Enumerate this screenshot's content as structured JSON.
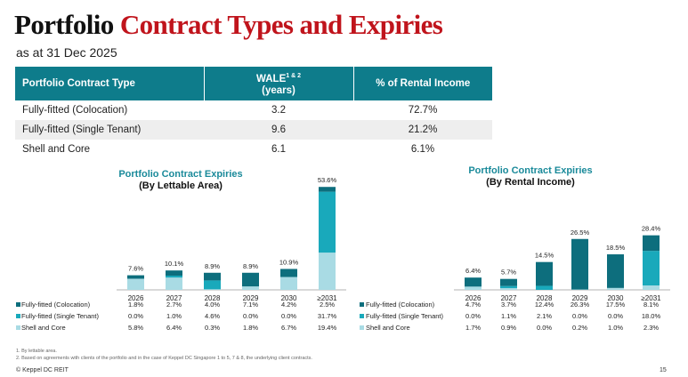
{
  "header": {
    "title_part1": "Portfolio",
    "title_part2": "Contract Types and Expiries",
    "subtitle": "as at 31 Dec 2025"
  },
  "contract_table": {
    "col1": "Portfolio Contract Type",
    "col2_line1": "WALE",
    "col2_sup": "1 & 2",
    "col2_line2": "(years)",
    "col3": "% of Rental Income",
    "rows": [
      {
        "type": "Fully-fitted (Colocation)",
        "wale": "3.2",
        "pct": "72.7%"
      },
      {
        "type": "Fully-fitted (Single Tenant)",
        "wale": "9.6",
        "pct": "21.2%"
      },
      {
        "type": "Shell and Core",
        "wale": "6.1",
        "pct": "6.1%"
      }
    ]
  },
  "colors": {
    "colocation": "#0d6e7d",
    "single_tenant": "#19a9bb",
    "shell_core": "#a9dbe4",
    "header_bg": "#0e7c8b",
    "accent_red": "#c0141c"
  },
  "chart_data": [
    {
      "type": "bar",
      "stacked": true,
      "title_line1": "Portfolio Contract Expiries",
      "title_line2": "(By Lettable Area)",
      "categories": [
        "2026",
        "2027",
        "2028",
        "2029",
        "2030",
        "≥2031"
      ],
      "totals": [
        "7.6%",
        "10.1%",
        "8.9%",
        "8.9%",
        "10.9%",
        "53.6%"
      ],
      "series": [
        {
          "name": "Fully-fitted (Colocation)",
          "values": [
            1.8,
            2.7,
            4.0,
            7.1,
            4.2,
            2.5
          ],
          "labels": [
            "1.8%",
            "2.7%",
            "4.0%",
            "7.1%",
            "4.2%",
            "2.5%"
          ]
        },
        {
          "name": "Fully-fitted (Single Tenant)",
          "values": [
            0.0,
            1.0,
            4.6,
            0.0,
            0.0,
            31.7
          ],
          "labels": [
            "0.0%",
            "1.0%",
            "4.6%",
            "0.0%",
            "0.0%",
            "31.7%"
          ]
        },
        {
          "name": "Shell and Core",
          "values": [
            5.8,
            6.4,
            0.3,
            1.8,
            6.7,
            19.4
          ],
          "labels": [
            "5.8%",
            "6.4%",
            "0.3%",
            "1.8%",
            "6.7%",
            "19.4%"
          ]
        }
      ]
    },
    {
      "type": "bar",
      "stacked": true,
      "title_line1": "Portfolio Contract Expiries",
      "title_line2": "(By Rental Income)",
      "categories": [
        "2026",
        "2027",
        "2028",
        "2029",
        "2030",
        "≥2031"
      ],
      "totals": [
        "6.4%",
        "5.7%",
        "14.5%",
        "26.5%",
        "18.5%",
        "28.4%"
      ],
      "series": [
        {
          "name": "Fully-fitted (Colocation)",
          "values": [
            4.7,
            3.7,
            12.4,
            26.3,
            17.5,
            8.1
          ],
          "labels": [
            "4.7%",
            "3.7%",
            "12.4%",
            "26.3%",
            "17.5%",
            "8.1%"
          ]
        },
        {
          "name": "Fully-fitted (Single Tenant)",
          "values": [
            0.0,
            1.1,
            2.1,
            0.0,
            0.0,
            18.0
          ],
          "labels": [
            "0.0%",
            "1.1%",
            "2.1%",
            "0.0%",
            "0.0%",
            "18.0%"
          ]
        },
        {
          "name": "Shell and Core",
          "values": [
            1.7,
            0.9,
            0.0,
            0.2,
            1.0,
            2.3
          ],
          "labels": [
            "1.7%",
            "0.9%",
            "0.0%",
            "0.2%",
            "1.0%",
            "2.3%"
          ]
        }
      ]
    }
  ],
  "footnotes": [
    "1.   By lettable area.",
    "2.   Based on agreements with clients of the portfolio and in the case of Keppel DC Singapore 1 to 5, 7 & 8, the underlying client contracts."
  ],
  "footer": "© Keppel DC REIT",
  "page_number": "15"
}
